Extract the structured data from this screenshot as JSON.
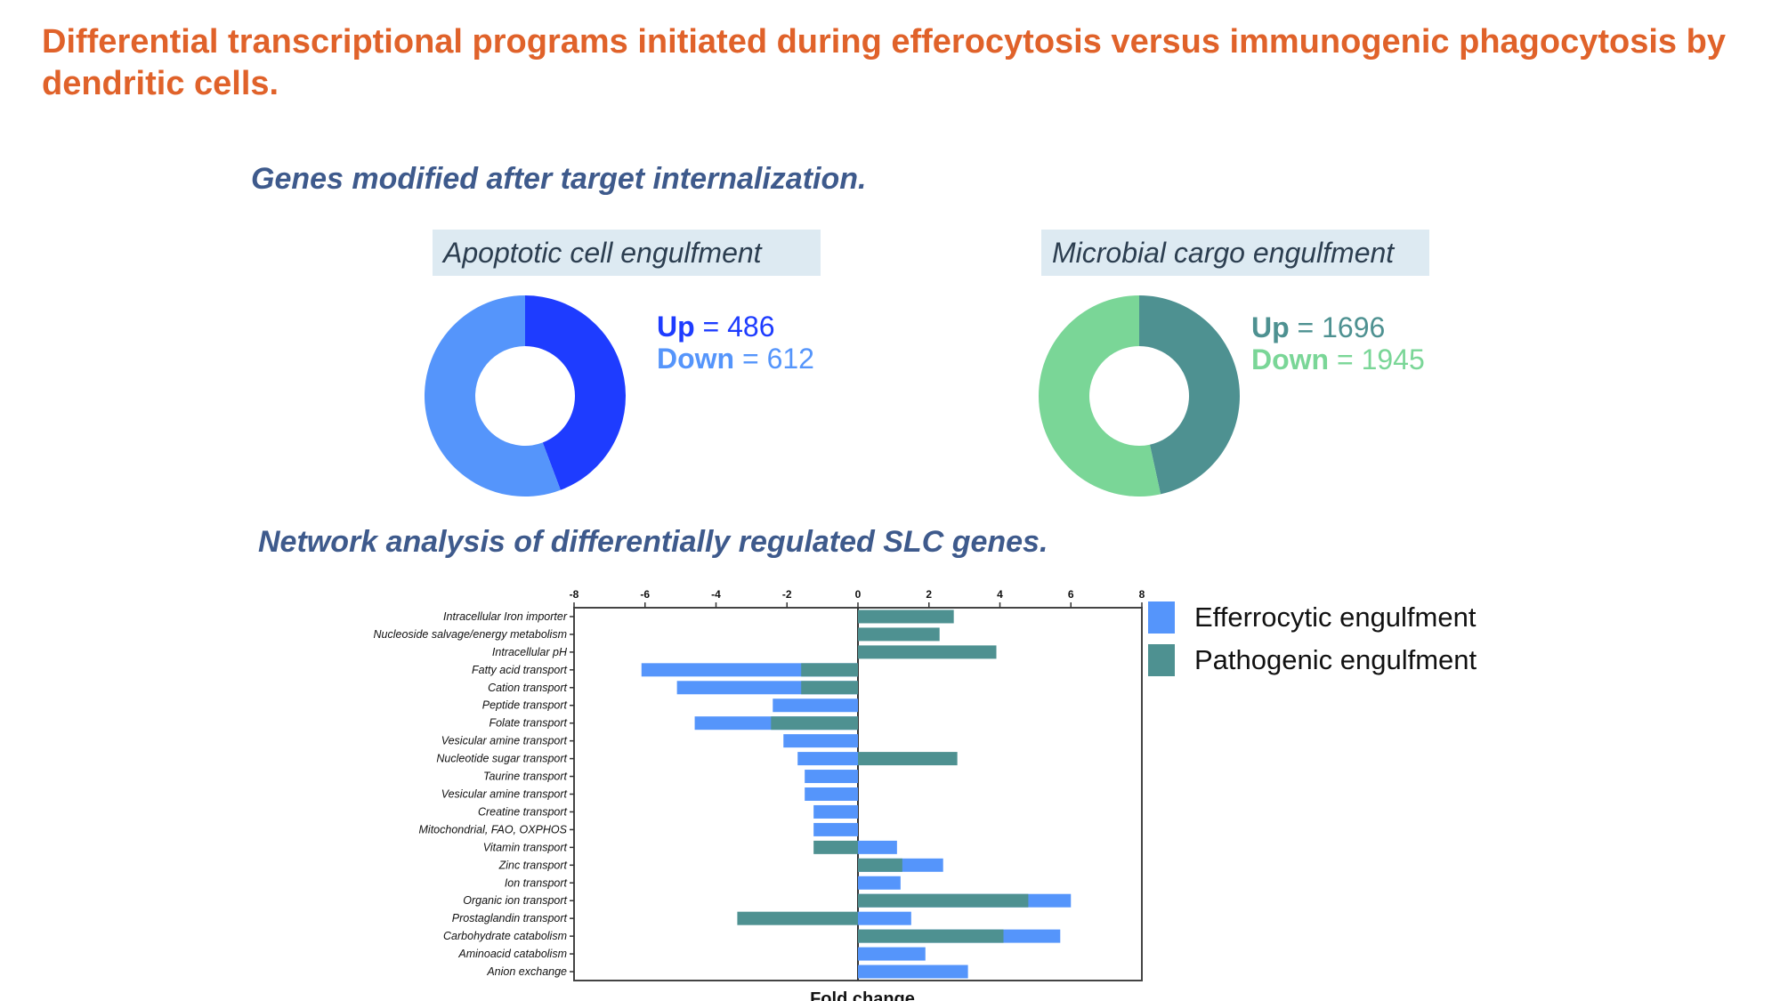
{
  "slide": {
    "title": "Differential transcriptional programs initiated during efferocytosis versus immunogenic phagocytosis by dendritic cells.",
    "heading_genes": "Genes modified after target internalization.",
    "heading_network": "Network analysis of differentially regulated SLC genes."
  },
  "colors": {
    "title": "#e0622a",
    "heading": "#3e5a8c",
    "panel_bg": "#ddeaf2",
    "apoptotic_up": "#1e3cff",
    "apoptotic_down": "#5595fb",
    "microbial_up": "#4e9191",
    "microbial_down": "#7ad697",
    "efferocytic": "#5595fb",
    "pathogenic": "#4e9191"
  },
  "chart_data": [
    {
      "type": "pie",
      "variant": "donut",
      "panel_label": "Apoptotic cell engulfment",
      "labels": [
        "Up",
        "Down"
      ],
      "values": [
        486,
        612
      ],
      "colors": [
        "#1e3cff",
        "#5595fb"
      ],
      "text": {
        "up_label": "Up",
        "up_sep": " = ",
        "up_value": "486",
        "down_label": "Down",
        "down_sep": " = ",
        "down_value": "612"
      }
    },
    {
      "type": "pie",
      "variant": "donut",
      "panel_label": "Microbial cargo engulfment",
      "labels": [
        "Up",
        "Down"
      ],
      "values": [
        1696,
        1945
      ],
      "colors": [
        "#4e9191",
        "#7ad697"
      ],
      "text": {
        "up_label": "Up",
        "up_sep": " = ",
        "up_value": "1696",
        "down_label": "Down",
        "down_sep": " = ",
        "down_value": "1945"
      }
    },
    {
      "type": "bar",
      "orientation": "horizontal",
      "overlay": true,
      "xlabel": "Fold change",
      "xlim": [
        -8,
        8
      ],
      "xticks": [
        -8,
        -6,
        -4,
        -2,
        0,
        2,
        4,
        6,
        8
      ],
      "legend_position": "right",
      "categories": [
        "Intracellular Iron importer",
        "Nucleoside salvage/energy metabolism",
        "Intracellular pH",
        "Fatty acid transport",
        "Cation transport",
        "Peptide transport",
        "Folate transport",
        "Vesicular amine  transport",
        "Nucleotide sugar transport",
        "Taurine transport",
        "Vesicular amine  transport",
        "Creatine transport",
        "Mitochondrial, FAO, OXPHOS",
        "Vitamin transport",
        "Zinc  transport",
        "Ion  transport",
        "Organic ion transport",
        "Prostaglandin transport",
        "Carbohydrate catabolism",
        "Aminoacid catabolism",
        "Anion exchange"
      ],
      "series": [
        {
          "name": "Efferocytic engulfment",
          "color": "#5595fb",
          "values": [
            null,
            null,
            null,
            -6.1,
            -5.1,
            -2.4,
            -4.6,
            -2.1,
            -1.7,
            -1.5,
            -1.5,
            -1.25,
            -1.25,
            1.1,
            2.4,
            1.2,
            6.0,
            1.5,
            5.7,
            1.9,
            3.1
          ]
        },
        {
          "name": "Pathogenic engulfment",
          "color": "#4e9191",
          "values": [
            2.7,
            2.3,
            3.9,
            -1.6,
            -1.6,
            null,
            -2.45,
            null,
            2.8,
            null,
            null,
            null,
            null,
            -1.25,
            1.25,
            null,
            4.8,
            -3.4,
            4.1,
            null,
            null
          ]
        }
      ]
    }
  ],
  "legend": [
    {
      "label": "Efferrocytic engulfment",
      "color": "#5595fb"
    },
    {
      "label": "Pathogenic engulfment",
      "color": "#4e9191"
    }
  ]
}
